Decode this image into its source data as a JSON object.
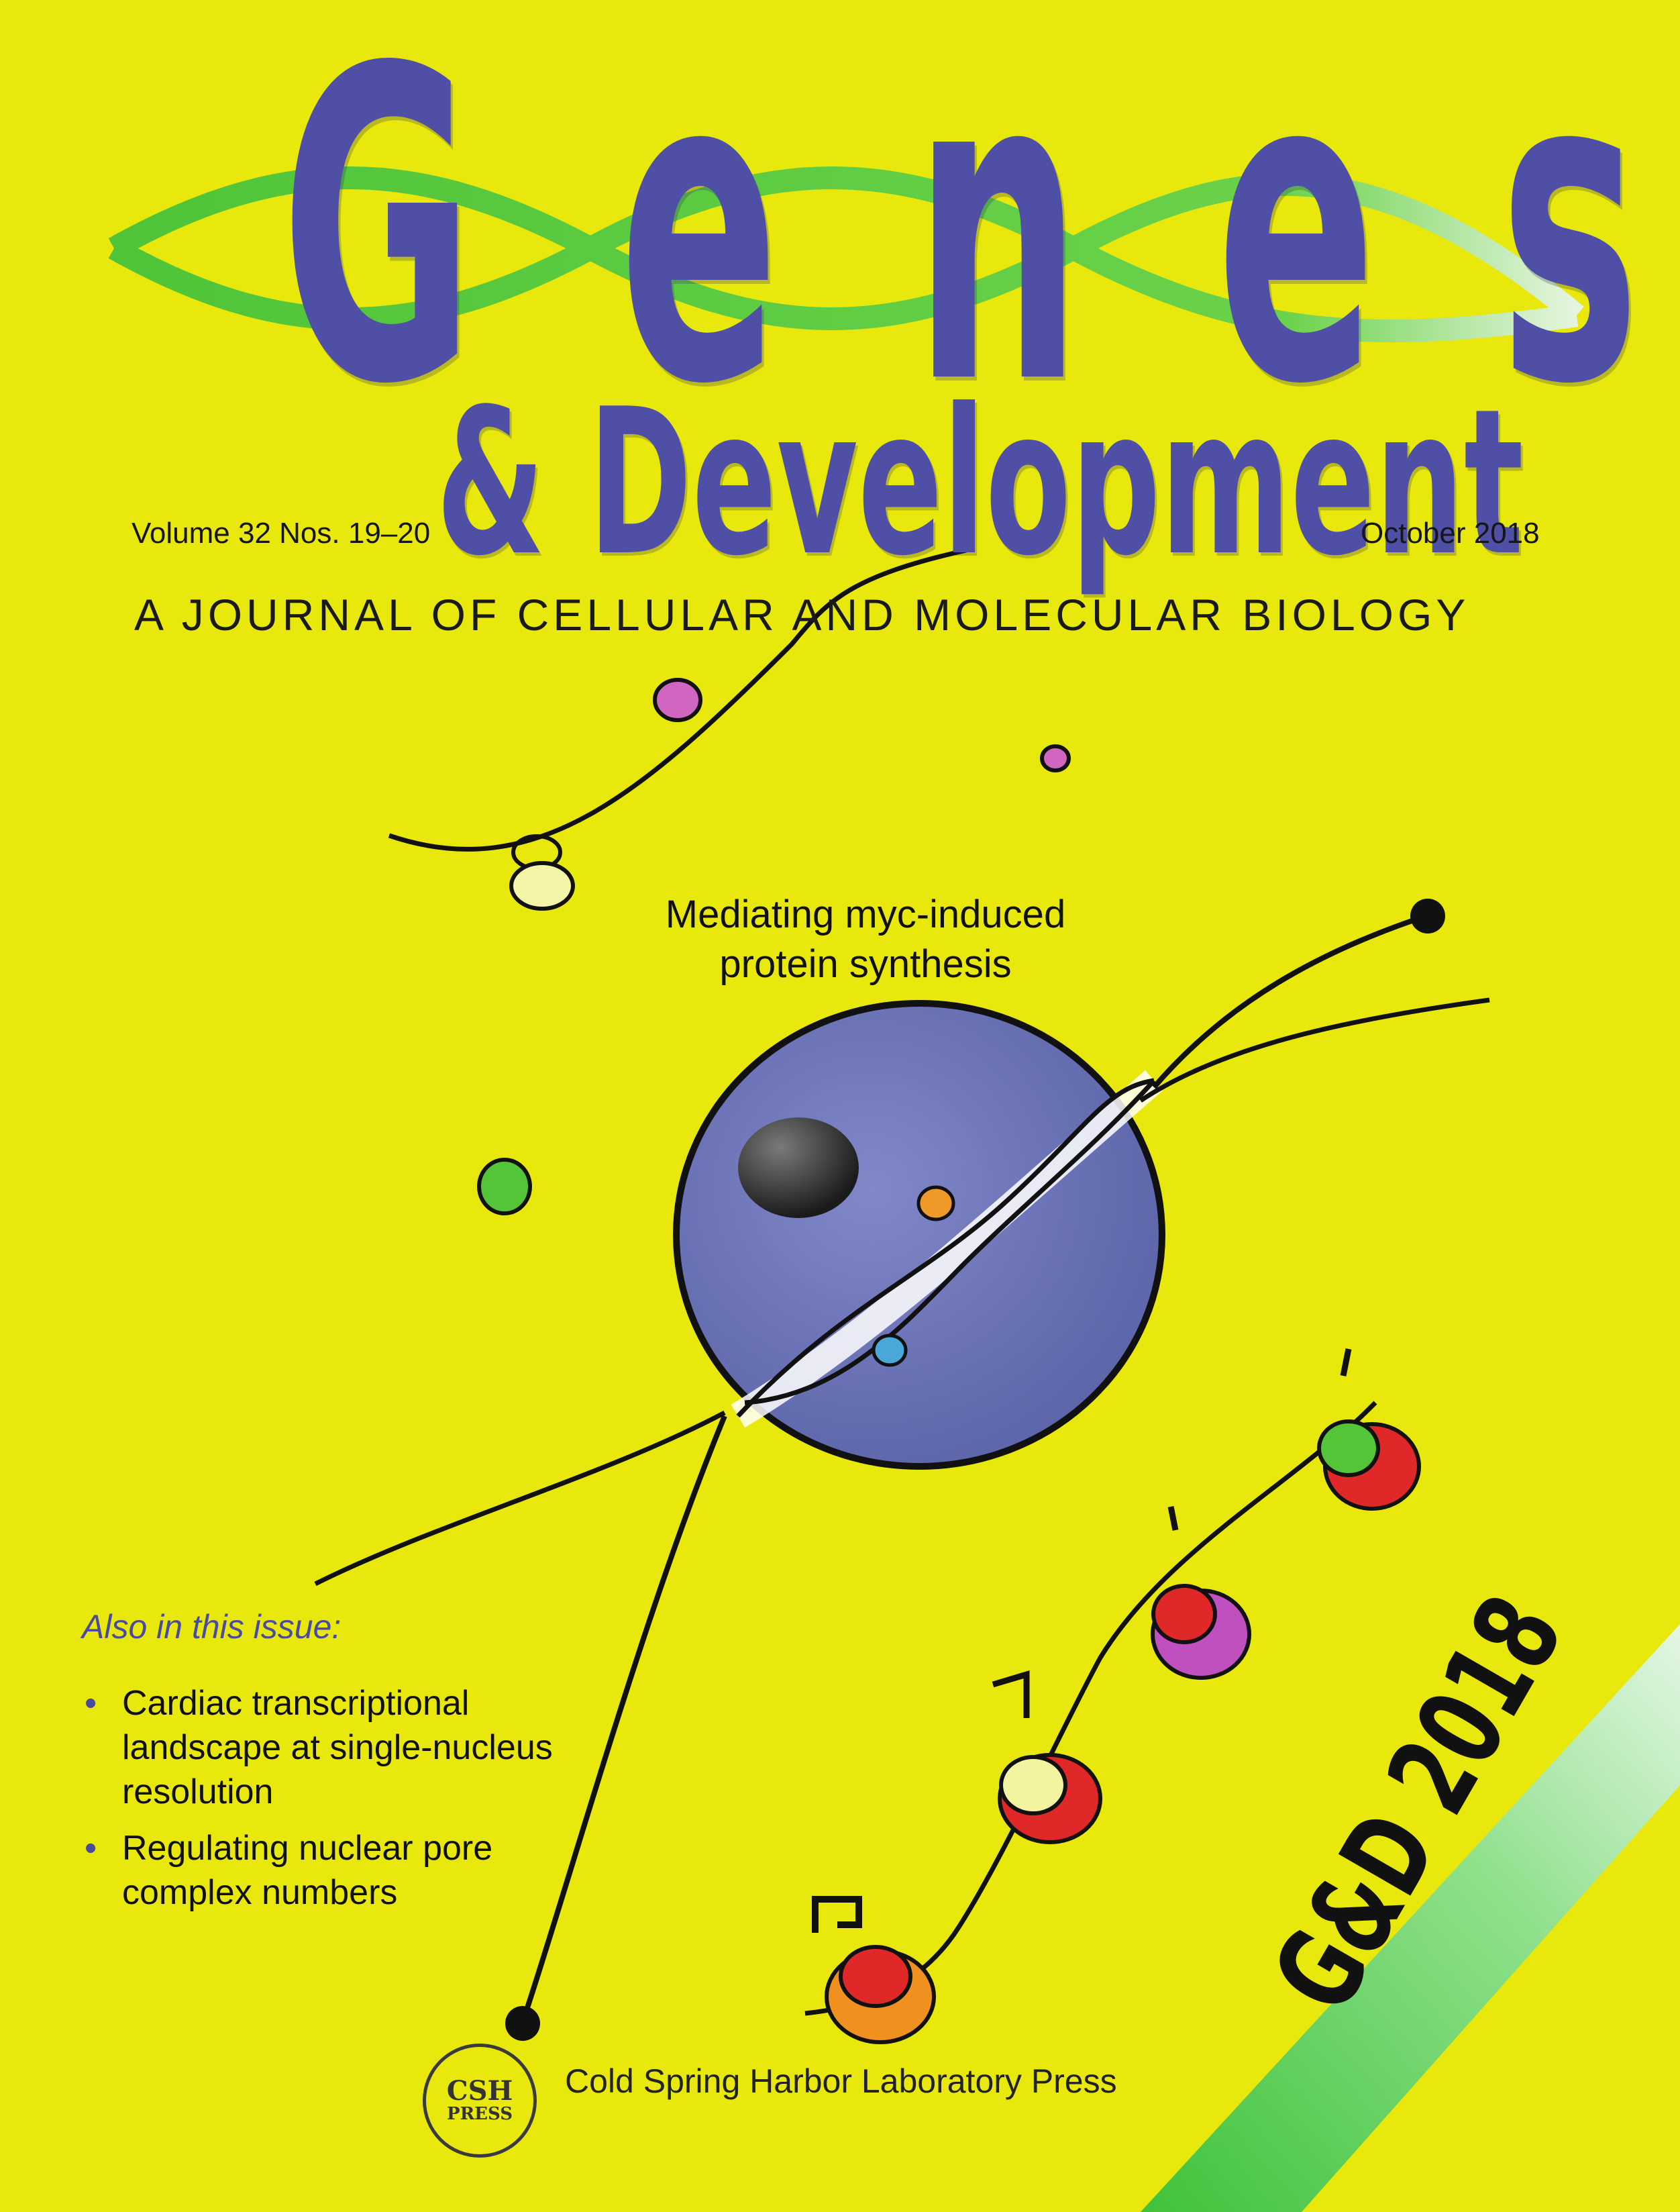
{
  "masthead": {
    "title_letters": [
      "G",
      "e",
      "n",
      "e",
      "s"
    ],
    "subtitle_line": "& Development",
    "tagline": "A JOURNAL OF CELLULAR AND MOLECULAR BIOLOGY"
  },
  "issue": {
    "volume": "Volume 32 Nos. 19–20",
    "date": "October 2018"
  },
  "feature": {
    "line1": "Mediating myc-induced",
    "line2": "protein synthesis"
  },
  "also": {
    "heading": "Also in this issue:",
    "items": [
      "Cardiac transcriptional landscape at single-nucleus resolution",
      "Regulating nuclear pore complex numbers"
    ]
  },
  "publisher": {
    "name": "Cold Spring Harbor Laboratory Press",
    "seal_top": "CSH",
    "seal_bottom": "PRESS"
  },
  "banner": {
    "text": "G&D 2018"
  },
  "colors": {
    "background": "#e8e80c",
    "title": "#4f4fa6",
    "helix": "#5ac83c",
    "cell": "#6c74b8"
  }
}
